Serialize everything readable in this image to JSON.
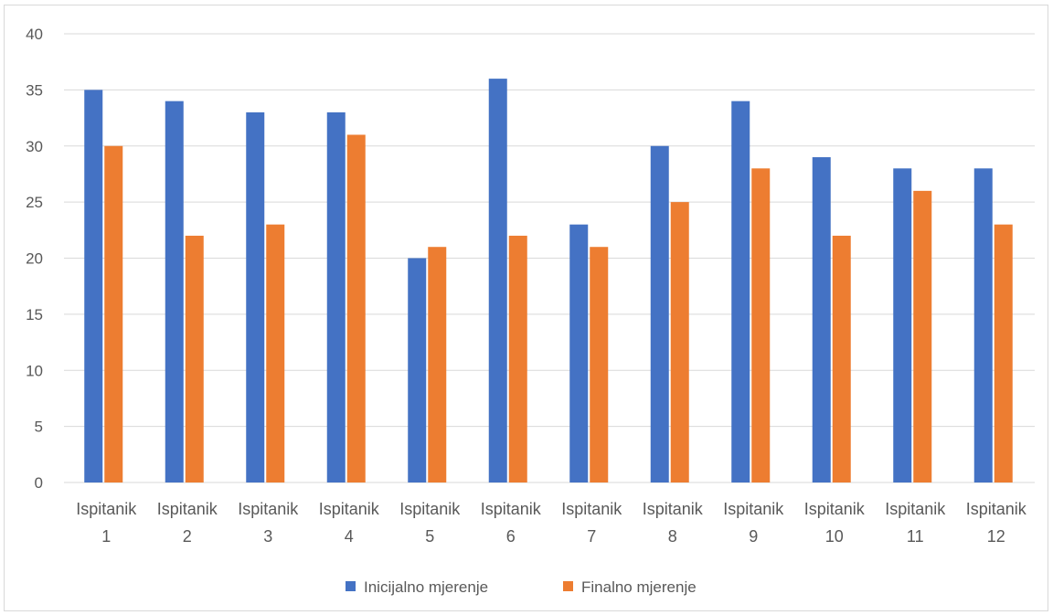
{
  "chart_data": {
    "type": "bar",
    "title": "",
    "xlabel": "",
    "ylabel": "",
    "categories": [
      [
        "Ispitanik",
        "1"
      ],
      [
        "Ispitanik",
        "2"
      ],
      [
        "Ispitanik",
        "3"
      ],
      [
        "Ispitanik",
        "4"
      ],
      [
        "Ispitanik",
        "5"
      ],
      [
        "Ispitanik",
        "6"
      ],
      [
        "Ispitanik",
        "7"
      ],
      [
        "Ispitanik",
        "8"
      ],
      [
        "Ispitanik",
        "9"
      ],
      [
        "Ispitanik",
        "10"
      ],
      [
        "Ispitanik",
        "11"
      ],
      [
        "Ispitanik",
        "12"
      ]
    ],
    "series": [
      {
        "name": "Inicijalno mjerenje",
        "color": "#4472c4",
        "values": [
          35,
          34,
          33,
          33,
          20,
          36,
          23,
          30,
          34,
          29,
          28,
          28
        ]
      },
      {
        "name": "Finalno mjerenje",
        "color": "#ed7d31",
        "values": [
          30,
          22,
          23,
          31,
          21,
          22,
          21,
          25,
          28,
          22,
          26,
          23
        ]
      }
    ],
    "ylim": [
      0,
      40
    ],
    "yticks": [
      0,
      5,
      10,
      15,
      20,
      25,
      30,
      35,
      40
    ],
    "grid": true,
    "legend_position": "bottom"
  }
}
